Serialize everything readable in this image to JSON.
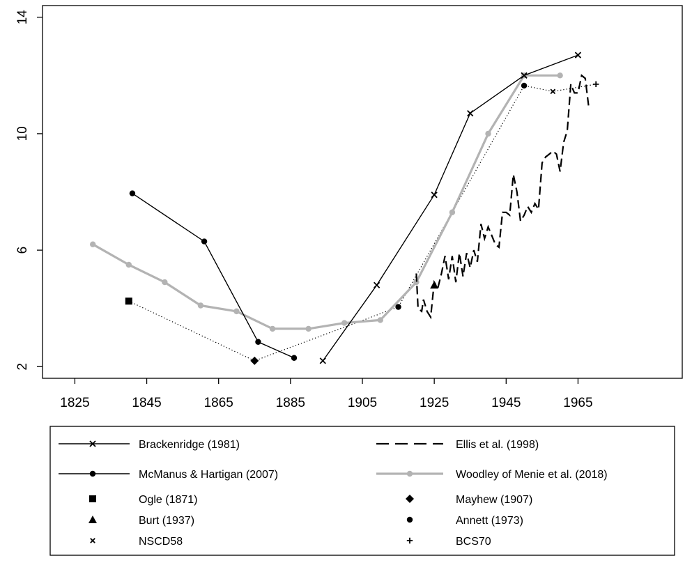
{
  "chart_data": {
    "type": "line",
    "title": "",
    "xlabel": "",
    "ylabel": "",
    "xlim": [
      1816,
      1994
    ],
    "ylim": [
      1.6,
      14.4
    ],
    "x_ticks": [
      1825,
      1845,
      1865,
      1885,
      1905,
      1925,
      1945,
      1965
    ],
    "y_ticks": [
      2,
      6,
      10,
      14
    ],
    "grid": false,
    "legend_position": "bottom",
    "colors": {
      "black": "#000000",
      "gray": "#b3b3b3"
    },
    "series": [
      {
        "name": "Brackenridge (1981)",
        "style": "solid",
        "color": "#000000",
        "marker": "x",
        "points": [
          [
            1894,
            2.2
          ],
          [
            1909,
            4.8
          ],
          [
            1925,
            7.9
          ],
          [
            1935,
            10.7
          ],
          [
            1950,
            12.0
          ],
          [
            1965,
            12.7
          ]
        ]
      },
      {
        "name": "Ellis et al. (1998)",
        "style": "dashed",
        "color": "#000000",
        "marker": "none",
        "points": [
          [
            1920,
            5.2
          ],
          [
            1920.5,
            4.0
          ],
          [
            1921.5,
            3.9
          ],
          [
            1922,
            4.3
          ],
          [
            1923,
            3.9
          ],
          [
            1924,
            3.7
          ],
          [
            1925,
            4.9
          ],
          [
            1926,
            4.7
          ],
          [
            1927,
            5.2
          ],
          [
            1928,
            5.8
          ],
          [
            1929,
            5.0
          ],
          [
            1930,
            5.8
          ],
          [
            1931,
            4.9
          ],
          [
            1932,
            5.9
          ],
          [
            1933,
            5.1
          ],
          [
            1934,
            5.9
          ],
          [
            1935,
            5.4
          ],
          [
            1936,
            6.0
          ],
          [
            1937,
            5.6
          ],
          [
            1938,
            6.9
          ],
          [
            1939,
            6.4
          ],
          [
            1940,
            6.8
          ],
          [
            1941,
            6.5
          ],
          [
            1942,
            6.2
          ],
          [
            1943,
            6.1
          ],
          [
            1944,
            7.3
          ],
          [
            1945,
            7.3
          ],
          [
            1946,
            7.2
          ],
          [
            1947,
            8.6
          ],
          [
            1948,
            8.0
          ],
          [
            1949,
            7.0
          ],
          [
            1950,
            7.2
          ],
          [
            1951,
            7.5
          ],
          [
            1952,
            7.3
          ],
          [
            1953,
            7.6
          ],
          [
            1954,
            7.4
          ],
          [
            1955,
            9.0
          ],
          [
            1956,
            9.2
          ],
          [
            1957,
            9.3
          ],
          [
            1958,
            9.4
          ],
          [
            1959,
            9.3
          ],
          [
            1960,
            8.7
          ],
          [
            1961,
            9.7
          ],
          [
            1962,
            10.1
          ],
          [
            1963,
            11.7
          ],
          [
            1964,
            11.4
          ],
          [
            1965,
            11.4
          ],
          [
            1966,
            12.0
          ],
          [
            1967,
            11.9
          ],
          [
            1968,
            10.9
          ]
        ]
      },
      {
        "name": "McManus & Hartigan (2007)",
        "style": "solid",
        "color": "#000000",
        "marker": "circle",
        "points": [
          [
            1841,
            7.95
          ],
          [
            1861,
            6.3
          ],
          [
            1876,
            2.85
          ],
          [
            1886,
            2.3
          ]
        ]
      },
      {
        "name": "Woodley of Menie et al. (2018)",
        "style": "solid-thick",
        "color": "#b3b3b3",
        "marker": "circle",
        "points": [
          [
            1830,
            6.2
          ],
          [
            1840,
            5.5
          ],
          [
            1850,
            4.9
          ],
          [
            1860,
            4.1
          ],
          [
            1870,
            3.9
          ],
          [
            1880,
            3.3
          ],
          [
            1890,
            3.3
          ],
          [
            1900,
            3.5
          ],
          [
            1910,
            3.6
          ],
          [
            1920,
            4.9
          ],
          [
            1930,
            7.3
          ],
          [
            1940,
            10.0
          ],
          [
            1950,
            12.0
          ],
          [
            1960,
            12.0
          ]
        ]
      },
      {
        "name": "Ogle (1871)",
        "style": "points",
        "color": "#000000",
        "marker": "square",
        "points": [
          [
            1840,
            4.25
          ]
        ]
      },
      {
        "name": "Mayhew (1907)",
        "style": "points",
        "color": "#000000",
        "marker": "diamond",
        "points": [
          [
            1875,
            2.2
          ]
        ]
      },
      {
        "name": "Burt (1937)",
        "style": "points",
        "color": "#000000",
        "marker": "triangle",
        "points": [
          [
            1925,
            4.8
          ]
        ]
      },
      {
        "name": "Annett (1973)",
        "style": "points",
        "color": "#000000",
        "marker": "circle",
        "points": [
          [
            1915,
            4.05
          ],
          [
            1950,
            11.65
          ]
        ]
      },
      {
        "name": "NSCD58",
        "style": "points",
        "color": "#000000",
        "marker": "x-small",
        "points": [
          [
            1958,
            11.45
          ]
        ]
      },
      {
        "name": "BCS70",
        "style": "points",
        "color": "#000000",
        "marker": "plus",
        "points": [
          [
            1970,
            11.7
          ]
        ]
      }
    ],
    "legend_entries": [
      {
        "label": "Brackenridge (1981)",
        "symbol": "line-x"
      },
      {
        "label": "Ellis et al. (1998)",
        "symbol": "dashed"
      },
      {
        "label": "McManus & Hartigan (2007)",
        "symbol": "line-circle"
      },
      {
        "label": "Woodley of Menie et al. (2018)",
        "symbol": "gray-line-circle"
      },
      {
        "label": "Ogle (1871)",
        "symbol": "square"
      },
      {
        "label": "Mayhew (1907)",
        "symbol": "diamond"
      },
      {
        "label": "Burt (1937)",
        "symbol": "triangle"
      },
      {
        "label": "Annett (1973)",
        "symbol": "circle"
      },
      {
        "label": "NSCD58",
        "symbol": "x-small"
      },
      {
        "label": "BCS70",
        "symbol": "plus"
      }
    ],
    "connectors": [
      {
        "style": "dotted",
        "points": [
          [
            1840,
            4.25
          ],
          [
            1875,
            2.2
          ],
          [
            1915,
            4.05
          ],
          [
            1950,
            11.65
          ],
          [
            1958,
            11.45
          ],
          [
            1970,
            11.7
          ]
        ]
      }
    ]
  }
}
